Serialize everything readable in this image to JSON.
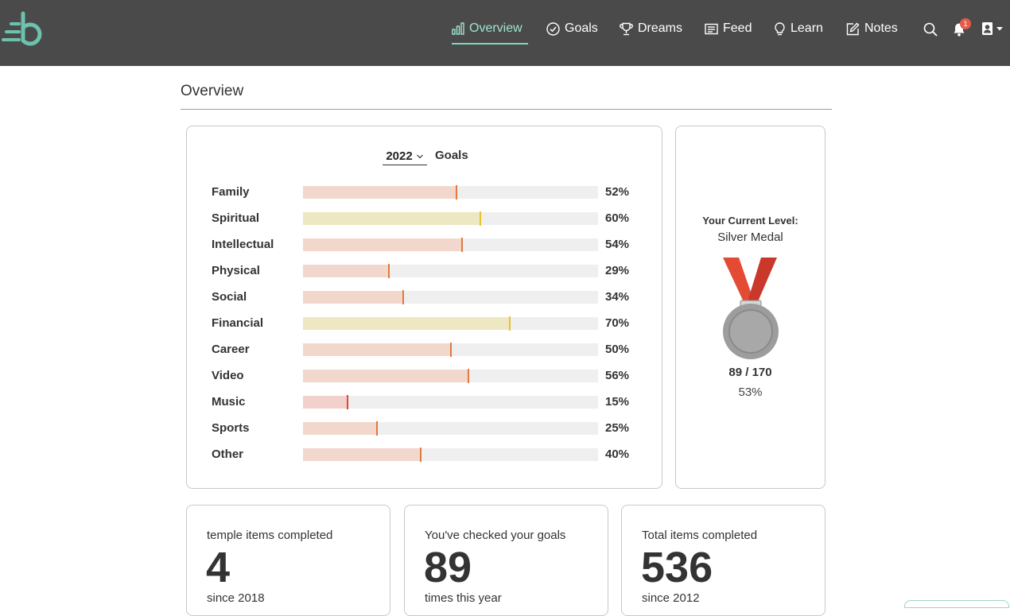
{
  "nav": {
    "items": [
      {
        "label": "Overview",
        "icon": "bar-chart-icon"
      },
      {
        "label": "Goals",
        "icon": "check-circle-icon"
      },
      {
        "label": "Dreams",
        "icon": "trophy-icon"
      },
      {
        "label": "Feed",
        "icon": "feed-icon"
      },
      {
        "label": "Learn",
        "icon": "lightbulb-icon"
      },
      {
        "label": "Notes",
        "icon": "edit-icon"
      }
    ],
    "notification_count": "1",
    "colors": {
      "bar": "#4a4a4a",
      "active": "#9fe3d2",
      "underline": "#7fd7c2",
      "badge": "#e55b4b"
    }
  },
  "page": {
    "title": "Overview"
  },
  "goals_card": {
    "year": "2022",
    "label": "Goals",
    "rows": [
      {
        "name": "Family",
        "pct_label": "52%",
        "value": 52,
        "fill": "#f2d8cc",
        "tick": "#e07a3d"
      },
      {
        "name": "Spiritual",
        "pct_label": "60%",
        "value": 60,
        "fill": "#ede7c2",
        "tick": "#e6c42a"
      },
      {
        "name": "Intellectual",
        "pct_label": "54%",
        "value": 54,
        "fill": "#f2d8cc",
        "tick": "#e07a3d"
      },
      {
        "name": "Physical",
        "pct_label": "29%",
        "value": 29,
        "fill": "#f2d8cc",
        "tick": "#e07a3d"
      },
      {
        "name": "Social",
        "pct_label": "34%",
        "value": 34,
        "fill": "#f2d8cc",
        "tick": "#e07a3d"
      },
      {
        "name": "Financial",
        "pct_label": "70%",
        "value": 70,
        "fill": "#ede7c2",
        "tick": "#e6c42a"
      },
      {
        "name": "Career",
        "pct_label": "50%",
        "value": 50,
        "fill": "#f2d8cc",
        "tick": "#e07a3d"
      },
      {
        "name": "Video",
        "pct_label": "56%",
        "value": 56,
        "fill": "#f2d8cc",
        "tick": "#e07a3d"
      },
      {
        "name": "Music",
        "pct_label": "15%",
        "value": 15,
        "fill": "#f2d0cc",
        "tick": "#e0453d"
      },
      {
        "name": "Sports",
        "pct_label": "25%",
        "value": 25,
        "fill": "#f2d8cc",
        "tick": "#e07a3d"
      },
      {
        "name": "Other",
        "pct_label": "40%",
        "value": 40,
        "fill": "#f2d8cc",
        "tick": "#e07a3d"
      }
    ]
  },
  "level_card": {
    "heading": "Your Current Level:",
    "level": "Silver Medal",
    "score": "89 / 170",
    "percent": "53%",
    "medal_icon": "silver-medal-icon"
  },
  "stats": [
    {
      "top": "temple items completed",
      "number": "4",
      "bottom": "since 2018"
    },
    {
      "top": "You've checked your goals",
      "number": "89",
      "bottom": "times this year"
    },
    {
      "top": "Total items completed",
      "number": "536",
      "bottom": "since 2012"
    }
  ]
}
